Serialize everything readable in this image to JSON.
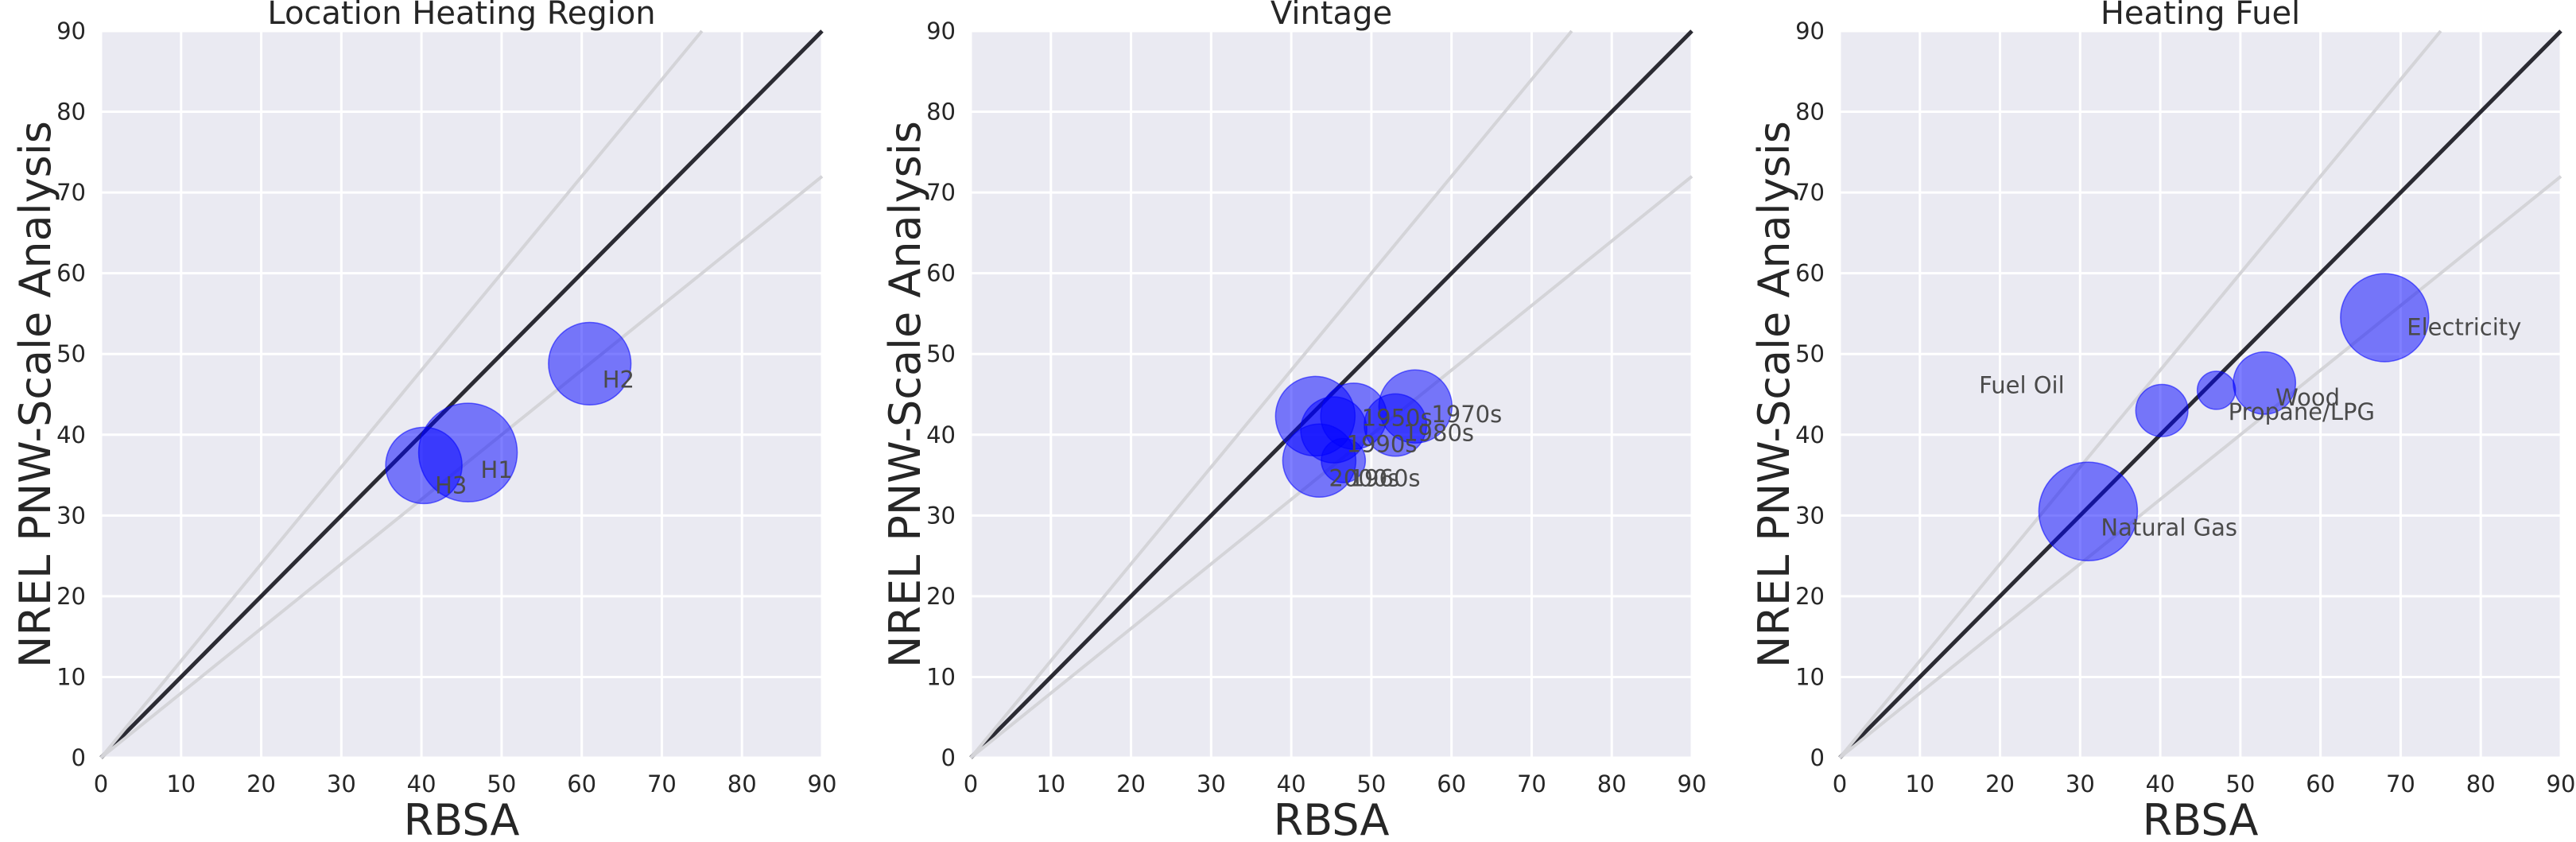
{
  "chart_data": [
    {
      "type": "scatter",
      "title": "Location Heating Region",
      "xlabel": "RBSA",
      "ylabel": "NREL PNW-Scale Analysis",
      "xlim": [
        0,
        90
      ],
      "ylim": [
        0,
        90
      ],
      "xticks": [
        0,
        10,
        20,
        30,
        40,
        50,
        60,
        70,
        80,
        90
      ],
      "yticks": [
        0,
        10,
        20,
        30,
        40,
        50,
        60,
        70,
        80,
        90
      ],
      "grid": true,
      "reference_lines": [
        {
          "slope": 1.0,
          "style": "dark"
        },
        {
          "slope": 1.2,
          "style": "light"
        },
        {
          "slope": 0.8,
          "style": "light"
        }
      ],
      "points": [
        {
          "label": "H1",
          "x": 45.8,
          "y": 37.8,
          "size": 1.0
        },
        {
          "label": "H2",
          "x": 61.0,
          "y": 48.8,
          "size": 0.7
        },
        {
          "label": "H3",
          "x": 40.3,
          "y": 36.2,
          "size": 0.6
        }
      ]
    },
    {
      "type": "scatter",
      "title": "Vintage",
      "xlabel": "RBSA",
      "ylabel": "NREL PNW-Scale Analysis",
      "xlim": [
        0,
        90
      ],
      "ylim": [
        0,
        90
      ],
      "xticks": [
        0,
        10,
        20,
        30,
        40,
        50,
        60,
        70,
        80,
        90
      ],
      "yticks": [
        0,
        10,
        20,
        30,
        40,
        50,
        60,
        70,
        80,
        90
      ],
      "grid": true,
      "reference_lines": [
        {
          "slope": 1.0,
          "style": "dark"
        },
        {
          "slope": 1.2,
          "style": "light"
        },
        {
          "slope": 0.8,
          "style": "light"
        }
      ],
      "points": [
        {
          "label": "1970s",
          "x": 55.5,
          "y": 43.5,
          "size": 0.55
        },
        {
          "label": "1980s",
          "x": 53.0,
          "y": 41.2,
          "size": 0.4
        },
        {
          "label": "1950s",
          "x": 47.8,
          "y": 42.3,
          "size": 0.45
        },
        {
          "label": "1990s",
          "x": 45.3,
          "y": 40.6,
          "size": 0.45
        },
        {
          "label": "1960s",
          "x": 46.5,
          "y": 36.8,
          "size": 0.2
        },
        {
          "label": "2000s",
          "x": 43.5,
          "y": 36.8,
          "size": 0.55
        },
        {
          "label": "",
          "x": 43.0,
          "y": 42.3,
          "size": 0.65
        }
      ]
    },
    {
      "type": "scatter",
      "title": "Heating Fuel",
      "xlabel": "RBSA",
      "ylabel": "NREL PNW-Scale Analysis",
      "xlim": [
        0,
        90
      ],
      "ylim": [
        0,
        90
      ],
      "xticks": [
        0,
        10,
        20,
        30,
        40,
        50,
        60,
        70,
        80,
        90
      ],
      "yticks": [
        0,
        10,
        20,
        30,
        40,
        50,
        60,
        70,
        80,
        90
      ],
      "grid": true,
      "reference_lines": [
        {
          "slope": 1.0,
          "style": "dark"
        },
        {
          "slope": 1.2,
          "style": "light"
        },
        {
          "slope": 0.8,
          "style": "light"
        }
      ],
      "points": [
        {
          "label": "Electricity",
          "x": 68.0,
          "y": 54.5,
          "size": 0.8
        },
        {
          "label": "Wood",
          "x": 53.0,
          "y": 46.4,
          "size": 0.4
        },
        {
          "label": "Propane/LPG",
          "x": 47.0,
          "y": 45.5,
          "size": 0.15
        },
        {
          "label": "Fuel Oil",
          "x": 40.2,
          "y": 43.0,
          "size": 0.28
        },
        {
          "label": "Natural Gas",
          "x": 31.0,
          "y": 30.5,
          "size": 1.0
        }
      ]
    }
  ]
}
